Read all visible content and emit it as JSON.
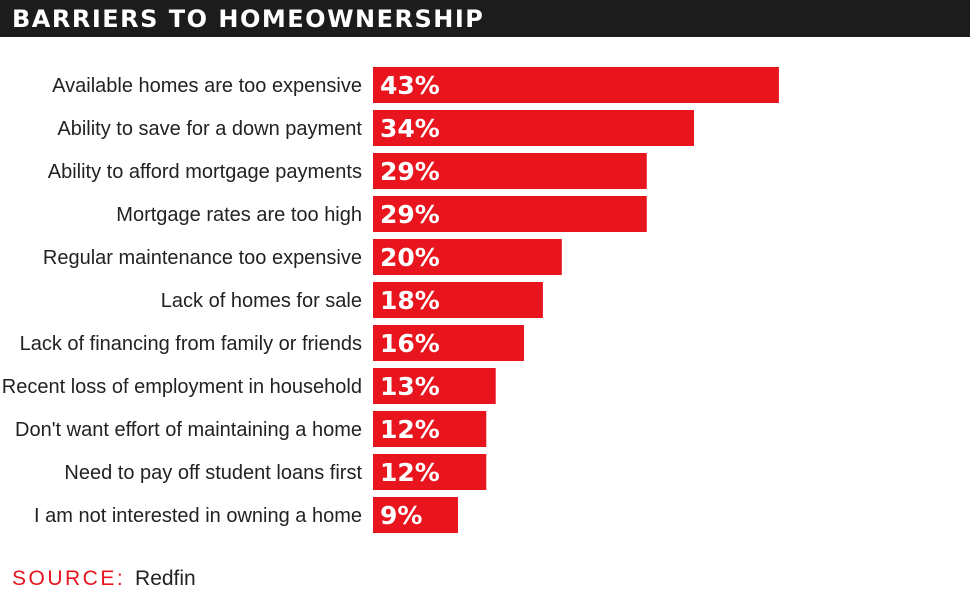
{
  "title": "BARRIERS TO HOMEOWNERSHIP",
  "source": {
    "label": "SOURCE:",
    "value": "Redfin"
  },
  "colors": {
    "bar": "#e8141e",
    "header_bg": "#1c1c1c",
    "text": "#222222"
  },
  "chart_data": {
    "type": "bar",
    "orientation": "horizontal",
    "title": "BARRIERS TO HOMEOWNERSHIP",
    "categories": [
      "Available homes are too expensive",
      "Ability to save for a down payment",
      "Ability to afford mortgage payments",
      "Mortgage rates are too high",
      "Regular maintenance too expensive",
      "Lack of homes for sale",
      "Lack of financing from family or friends",
      "Recent loss of employment in household",
      "Don't want effort of maintaining a home",
      "Need to pay off student loans first",
      "I am not interested in owning a home"
    ],
    "values": [
      43,
      34,
      29,
      29,
      20,
      18,
      16,
      13,
      12,
      12,
      9
    ],
    "value_labels": [
      "43%",
      "34%",
      "29%",
      "29%",
      "20%",
      "18%",
      "16%",
      "13%",
      "12%",
      "12%",
      "9%"
    ],
    "unit": "%",
    "grid": false,
    "legend": "none"
  }
}
